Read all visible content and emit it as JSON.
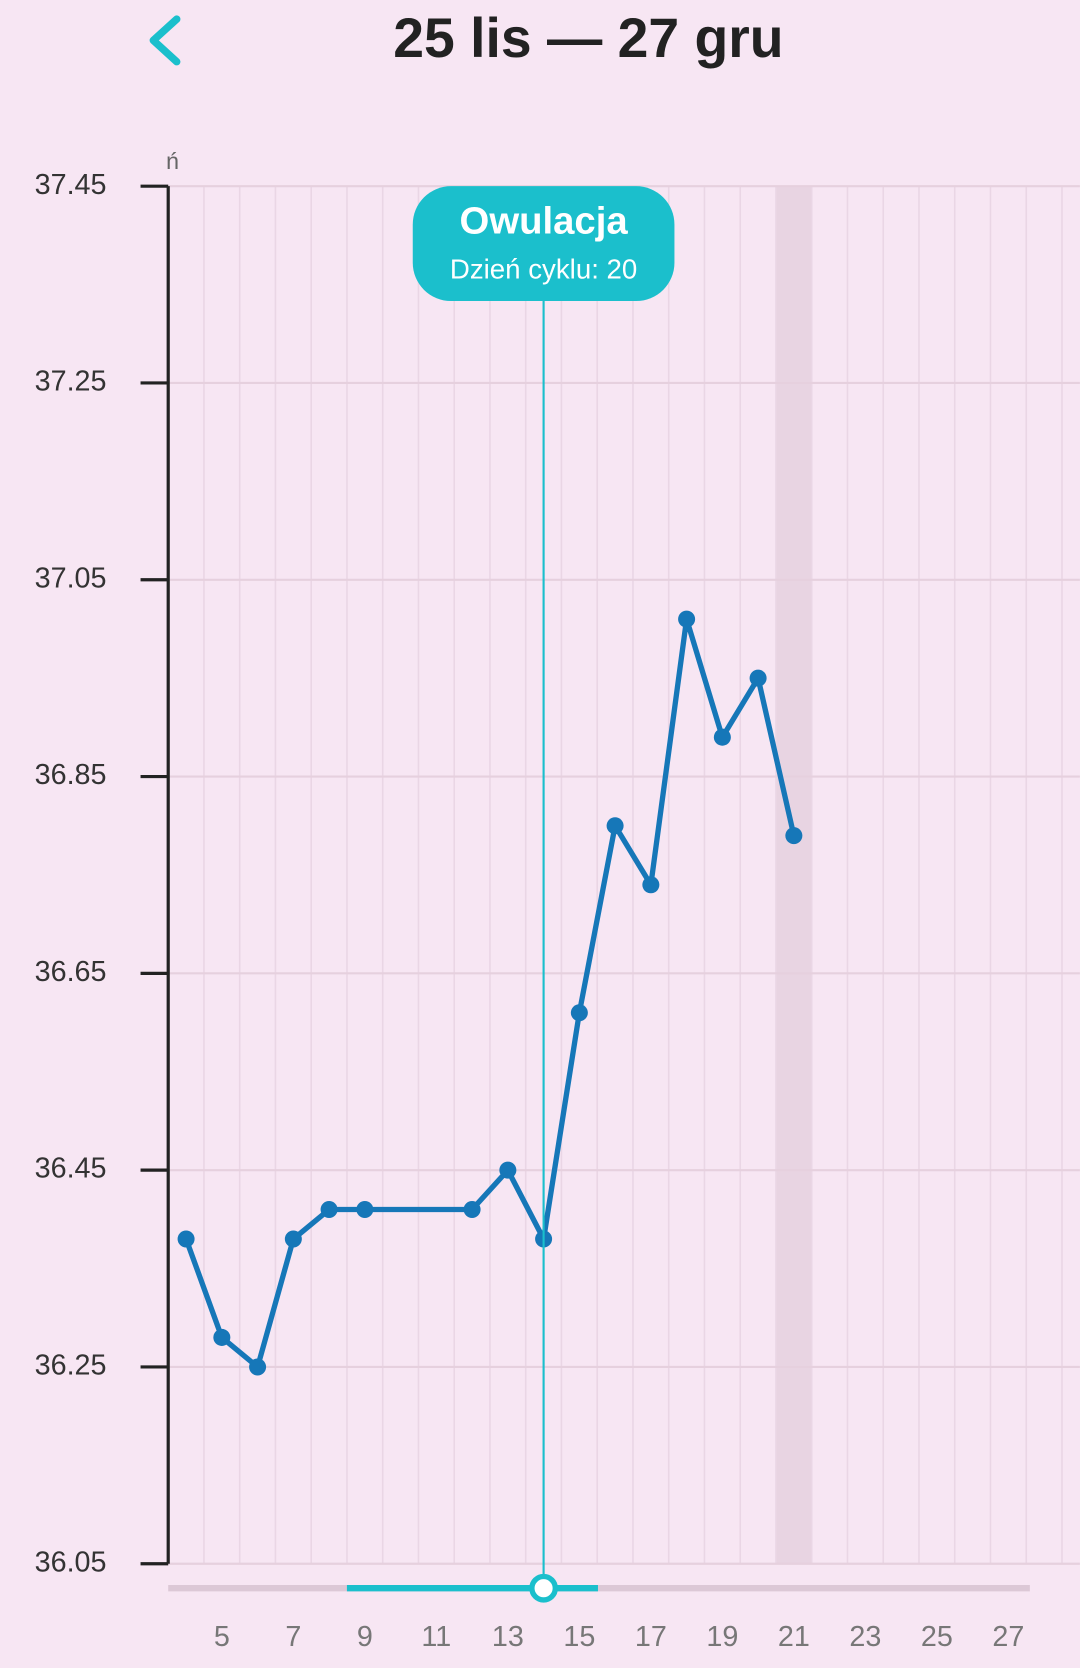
{
  "header": {
    "title": "25 lis — 27 gru"
  },
  "chart_data": {
    "type": "line",
    "y_axis_label": "ń",
    "x": [
      4,
      5,
      6,
      7,
      8,
      9,
      12,
      13,
      14,
      15,
      16,
      17,
      18,
      19,
      20,
      21
    ],
    "values": [
      36.38,
      36.28,
      36.25,
      36.38,
      36.41,
      36.41,
      36.41,
      36.45,
      36.38,
      36.61,
      36.8,
      36.74,
      37.01,
      36.89,
      36.95,
      36.79
    ],
    "color": "#1677b8",
    "xlim": [
      3.5,
      29
    ],
    "xticks": [
      5,
      7,
      9,
      11,
      13,
      15,
      17,
      19,
      21,
      23,
      25,
      27
    ],
    "ylim": [
      36.05,
      37.45
    ],
    "yticks": [
      36.05,
      36.25,
      36.45,
      36.65,
      36.85,
      37.05,
      37.25,
      37.45
    ],
    "grid": true,
    "highlight_x": 21,
    "marker": {
      "x": 14,
      "title": "Owulacja",
      "subtitle": "Dzień cyklu: 20",
      "color": "#1bbfcc"
    }
  }
}
